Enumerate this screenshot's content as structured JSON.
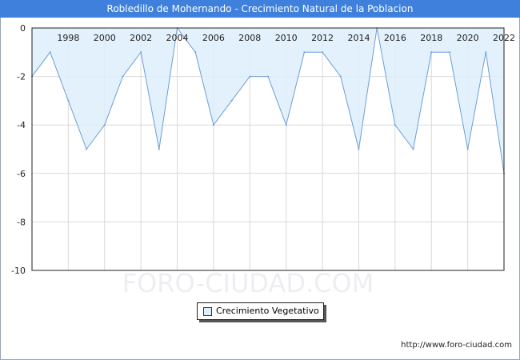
{
  "window": {
    "title": "Robledillo de Mohernando - Crecimiento Natural de la Poblacion"
  },
  "watermark": "FORO-CIUDAD.COM",
  "footer": {
    "url": "http://www.foro-ciudad.com"
  },
  "colors": {
    "header": "#3e80dc",
    "fill": "#ddeefc",
    "line": "#6d9ed3",
    "grid": "#d9d9d9"
  },
  "chart_data": {
    "type": "area",
    "title": "Robledillo de Mohernando - Crecimiento Natural de la Poblacion",
    "xlabel": "",
    "ylabel": "",
    "x": [
      1996,
      1997,
      1998,
      1999,
      2000,
      2001,
      2002,
      2003,
      2004,
      2005,
      2006,
      2007,
      2008,
      2009,
      2010,
      2011,
      2012,
      2013,
      2014,
      2015,
      2016,
      2017,
      2018,
      2019,
      2020,
      2021,
      2022
    ],
    "series": [
      {
        "name": "Crecimiento Vegetativo",
        "values": [
          -2,
          -1,
          -3,
          -5,
          -4,
          -2,
          -1,
          -5,
          0,
          -1,
          -4,
          -3,
          -2,
          -2,
          -4,
          -1,
          -1,
          -2,
          -5,
          0,
          -4,
          -5,
          -1,
          -1,
          -5,
          -1,
          -6
        ]
      }
    ],
    "xticks": [
      "1998",
      "2000",
      "2002",
      "2004",
      "2006",
      "2008",
      "2010",
      "2012",
      "2014",
      "2016",
      "2018",
      "2020",
      "2022"
    ],
    "yticks": [
      "0",
      "-2",
      "-4",
      "-6",
      "-8",
      "-10"
    ],
    "xlim": [
      1996,
      2022
    ],
    "ylim": [
      -10,
      0
    ],
    "grid": true,
    "legend": "bottom-center",
    "x_axis_position": "top"
  }
}
